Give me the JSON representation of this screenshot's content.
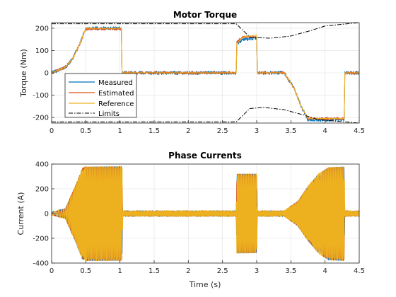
{
  "figure": {
    "background": "#ffffff"
  },
  "chart_data": [
    {
      "id": "top",
      "type": "line",
      "title": "Motor Torque",
      "xlabel": "",
      "ylabel": "Torque (Nm)",
      "xlim": [
        0,
        4.5
      ],
      "ylim": [
        -225,
        225
      ],
      "xticks": [
        0,
        0.5,
        1,
        1.5,
        2,
        2.5,
        3,
        3.5,
        4,
        4.5
      ],
      "xtick_labels": [
        "0",
        "0.5",
        "1",
        "1.5",
        "2",
        "2.5",
        "3",
        "3.5",
        "4",
        "4.5"
      ],
      "yticks": [
        -200,
        -100,
        0,
        100,
        200
      ],
      "ytick_labels": [
        "-200",
        "-100",
        "0",
        "100",
        "200"
      ],
      "grid": true,
      "legend_placement": "lower-left",
      "series": [
        {
          "name": "Measured",
          "color": "#0072BD",
          "noise": 8,
          "values": [
            [
              0,
              0
            ],
            [
              0.2,
              25
            ],
            [
              0.3,
              60
            ],
            [
              0.4,
              120
            ],
            [
              0.5,
              200
            ],
            [
              1.02,
              200
            ],
            [
              1.03,
              0
            ],
            [
              2.7,
              0
            ],
            [
              2.71,
              130
            ],
            [
              2.8,
              150
            ],
            [
              3.0,
              155
            ],
            [
              3.01,
              0
            ],
            [
              3.4,
              0
            ],
            [
              3.55,
              -70
            ],
            [
              3.65,
              -150
            ],
            [
              3.75,
              -210
            ],
            [
              4.28,
              -210
            ],
            [
              4.29,
              0
            ],
            [
              4.5,
              0
            ]
          ]
        },
        {
          "name": "Estimated",
          "color": "#D95319",
          "noise": 6,
          "values": [
            [
              0,
              0
            ],
            [
              0.2,
              25
            ],
            [
              0.3,
              60
            ],
            [
              0.4,
              120
            ],
            [
              0.5,
              197
            ],
            [
              1.02,
              197
            ],
            [
              1.03,
              0
            ],
            [
              2.7,
              0
            ],
            [
              2.71,
              140
            ],
            [
              2.8,
              160
            ],
            [
              3.0,
              162
            ],
            [
              3.01,
              0
            ],
            [
              3.4,
              0
            ],
            [
              3.55,
              -70
            ],
            [
              3.65,
              -150
            ],
            [
              3.75,
              -205
            ],
            [
              4.28,
              -205
            ],
            [
              4.29,
              0
            ],
            [
              4.5,
              0
            ]
          ]
        },
        {
          "name": "Reference",
          "color": "#EDB120",
          "noise": 0,
          "values": [
            [
              0,
              0
            ],
            [
              0.2,
              25
            ],
            [
              0.3,
              60
            ],
            [
              0.4,
              120
            ],
            [
              0.5,
              200
            ],
            [
              1.02,
              200
            ],
            [
              1.03,
              0
            ],
            [
              2.7,
              0
            ],
            [
              2.71,
              130
            ],
            [
              2.8,
              160
            ],
            [
              3.0,
              170
            ],
            [
              3.01,
              0
            ],
            [
              3.4,
              0
            ],
            [
              3.55,
              -70
            ],
            [
              3.65,
              -150
            ],
            [
              3.75,
              -205
            ],
            [
              4.28,
              -205
            ],
            [
              4.29,
              0
            ],
            [
              4.5,
              0
            ]
          ]
        },
        {
          "name": "Limits",
          "color": "#000000",
          "dash": "6,2,1.5,2",
          "noise": 0,
          "values": [
            [
              0,
              220
            ],
            [
              2.7,
              220
            ],
            [
              2.9,
              160
            ],
            [
              3.2,
              155
            ],
            [
              3.5,
              165
            ],
            [
              3.8,
              190
            ],
            [
              4.0,
              210
            ],
            [
              4.5,
              225
            ]
          ],
          "values_lower": [
            [
              0,
              -220
            ],
            [
              2.7,
              -220
            ],
            [
              2.9,
              -160
            ],
            [
              3.1,
              -155
            ],
            [
              3.4,
              -165
            ],
            [
              3.7,
              -190
            ],
            [
              3.9,
              -210
            ],
            [
              4.5,
              -225
            ]
          ]
        }
      ]
    },
    {
      "id": "bottom",
      "type": "line",
      "title": "Phase Currents",
      "xlabel": "Time (s)",
      "ylabel": "Current (A)",
      "xlim": [
        0,
        4.5
      ],
      "ylim": [
        -400,
        400
      ],
      "xticks": [
        0,
        0.5,
        1,
        1.5,
        2,
        2.5,
        3,
        3.5,
        4,
        4.5
      ],
      "xtick_labels": [
        "0",
        "0.5",
        "1",
        "1.5",
        "2",
        "2.5",
        "3",
        "3.5",
        "4",
        "4.5"
      ],
      "yticks": [
        -400,
        -200,
        0,
        200,
        400
      ],
      "ytick_labels": [
        "-400",
        "-200",
        "0",
        "200",
        "400"
      ],
      "grid": true,
      "series": [
        {
          "color": "#0072BD",
          "phase": 0,
          "amplitude_envelope": [
            [
              0,
              10
            ],
            [
              0.2,
              40
            ],
            [
              0.35,
              230
            ],
            [
              0.45,
              370
            ],
            [
              0.5,
              380
            ],
            [
              1.03,
              380
            ],
            [
              1.04,
              20
            ],
            [
              2.7,
              20
            ],
            [
              2.71,
              320
            ],
            [
              3.0,
              320
            ],
            [
              3.01,
              20
            ],
            [
              3.4,
              20
            ],
            [
              3.6,
              100
            ],
            [
              3.75,
              220
            ],
            [
              3.9,
              320
            ],
            [
              4.05,
              375
            ],
            [
              4.28,
              380
            ],
            [
              4.29,
              20
            ],
            [
              4.5,
              20
            ]
          ]
        },
        {
          "color": "#D95319",
          "phase": 2.094,
          "amplitude_envelope": [
            [
              0,
              10
            ],
            [
              0.2,
              40
            ],
            [
              0.35,
              230
            ],
            [
              0.45,
              370
            ],
            [
              0.5,
              380
            ],
            [
              1.03,
              380
            ],
            [
              1.04,
              20
            ],
            [
              2.7,
              20
            ],
            [
              2.71,
              320
            ],
            [
              3.0,
              320
            ],
            [
              3.01,
              20
            ],
            [
              3.4,
              20
            ],
            [
              3.6,
              100
            ],
            [
              3.75,
              220
            ],
            [
              3.9,
              320
            ],
            [
              4.05,
              375
            ],
            [
              4.28,
              380
            ],
            [
              4.29,
              20
            ],
            [
              4.5,
              20
            ]
          ]
        },
        {
          "color": "#EDB120",
          "phase": 4.189,
          "amplitude_envelope": [
            [
              0,
              10
            ],
            [
              0.2,
              40
            ],
            [
              0.35,
              230
            ],
            [
              0.45,
              370
            ],
            [
              0.5,
              380
            ],
            [
              1.03,
              380
            ],
            [
              1.04,
              20
            ],
            [
              2.7,
              20
            ],
            [
              2.71,
              320
            ],
            [
              3.0,
              320
            ],
            [
              3.01,
              20
            ],
            [
              3.4,
              20
            ],
            [
              3.6,
              100
            ],
            [
              3.75,
              220
            ],
            [
              3.9,
              320
            ],
            [
              4.05,
              375
            ],
            [
              4.28,
              380
            ],
            [
              4.29,
              20
            ],
            [
              4.5,
              20
            ]
          ]
        }
      ]
    }
  ]
}
